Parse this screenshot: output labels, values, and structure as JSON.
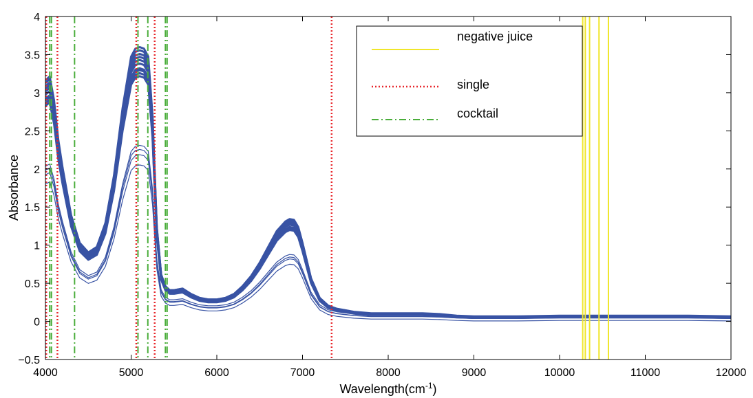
{
  "chart_data": {
    "type": "line",
    "title": "",
    "xlabel": "Wavelength(cm",
    "xlabel_sup": "-1",
    "xlabel_close": ")",
    "ylabel": "Absorbance",
    "xlim": [
      4000,
      12000
    ],
    "ylim": [
      -0.5,
      4
    ],
    "xticks": [
      4000,
      5000,
      6000,
      7000,
      8000,
      9000,
      10000,
      11000,
      12000
    ],
    "yticks": [
      -0.5,
      0,
      0.5,
      1,
      1.5,
      2,
      2.5,
      3,
      3.5,
      4
    ],
    "xtick_labels": [
      "4000",
      "5000",
      "6000",
      "7000",
      "8000",
      "9000",
      "10000",
      "11000",
      "12000"
    ],
    "ytick_labels": [
      "−0.5",
      "0",
      "0.5",
      "1",
      "1.5",
      "2",
      "2.5",
      "3",
      "3.5",
      "4"
    ],
    "grid": false,
    "legend_position": "top-right",
    "colors": {
      "spectra": "#3853a4",
      "negative_juice": "#f0e62a",
      "single": "#e8262b",
      "cocktail": "#4aad3a"
    },
    "legend": [
      {
        "name": "negative juice",
        "style": "solid",
        "color": "#f0e62a"
      },
      {
        "name": "single",
        "style": "dotted",
        "color": "#e8262b"
      },
      {
        "name": "cocktail",
        "style": "dashdot",
        "color": "#4aad3a"
      }
    ],
    "spectra_profile": {
      "x": [
        4000,
        4050,
        4100,
        4150,
        4200,
        4300,
        4400,
        4500,
        4600,
        4700,
        4800,
        4900,
        5000,
        5050,
        5100,
        5150,
        5200,
        5250,
        5300,
        5350,
        5400,
        5450,
        5500,
        5600,
        5700,
        5800,
        5900,
        6000,
        6100,
        6200,
        6300,
        6400,
        6500,
        6600,
        6700,
        6800,
        6850,
        6900,
        6950,
        7000,
        7100,
        7200,
        7300,
        7400,
        7600,
        7800,
        8000,
        8200,
        8400,
        8600,
        8800,
        9000,
        9500,
        10000,
        10500,
        11000,
        11500,
        12000
      ],
      "y": [
        3.05,
        3.1,
        2.8,
        2.3,
        1.95,
        1.35,
        1.0,
        0.88,
        0.95,
        1.25,
        1.85,
        2.7,
        3.35,
        3.45,
        3.47,
        3.45,
        3.35,
        2.6,
        1.2,
        0.6,
        0.45,
        0.4,
        0.4,
        0.42,
        0.35,
        0.3,
        0.28,
        0.28,
        0.3,
        0.35,
        0.45,
        0.58,
        0.75,
        0.95,
        1.15,
        1.27,
        1.3,
        1.29,
        1.2,
        1.0,
        0.55,
        0.3,
        0.2,
        0.16,
        0.12,
        0.1,
        0.1,
        0.1,
        0.1,
        0.09,
        0.07,
        0.06,
        0.06,
        0.07,
        0.07,
        0.07,
        0.07,
        0.06
      ]
    },
    "series": [
      {
        "scale": 1.04,
        "offset": -0.01
      },
      {
        "scale": 1.025,
        "offset": 0.0
      },
      {
        "scale": 1.01,
        "offset": 0.005
      },
      {
        "scale": 1.0,
        "offset": 0.0
      },
      {
        "scale": 0.99,
        "offset": -0.005
      },
      {
        "scale": 0.975,
        "offset": 0.0
      },
      {
        "scale": 0.96,
        "offset": -0.01
      },
      {
        "scale": 0.95,
        "offset": 0.0
      },
      {
        "scale": 0.94,
        "offset": -0.005
      },
      {
        "scale": 0.93,
        "offset": -0.01
      },
      {
        "scale": 0.66,
        "offset": 0.02
      },
      {
        "scale": 0.65,
        "offset": 0.0
      },
      {
        "scale": 0.63,
        "offset": 0.0
      },
      {
        "scale": 0.6,
        "offset": -0.03
      }
    ],
    "negative_juice_lines": [
      10270,
      10300,
      10350,
      10460,
      10570
    ],
    "single_lines": [
      4010,
      4140,
      5060,
      5275,
      7340
    ],
    "cocktail_lines": [
      4050,
      4070,
      4340,
      5080,
      5195,
      5400,
      5420
    ]
  }
}
